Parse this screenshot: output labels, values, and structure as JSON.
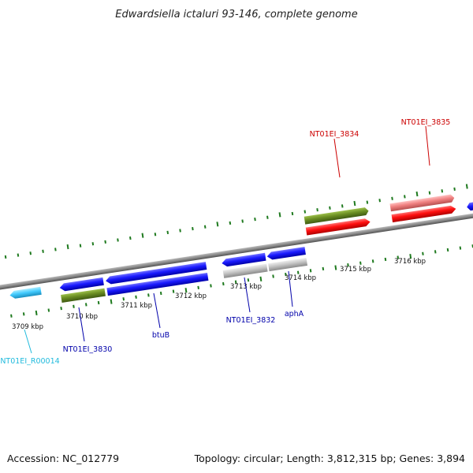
{
  "title": "Edwardsiella ictaluri 93-146, complete genome",
  "footer": {
    "accession": "Accession: NC_012779",
    "summary": "Topology: circular; Length: 3,812,315 bp; Genes: 3,894"
  },
  "scale_labels": [
    "3709 kbp",
    "3710 kbp",
    "3711 kbp",
    "3712 kbp",
    "3713 kbp",
    "3714 kbp",
    "3715 kbp",
    "3716 kbp"
  ],
  "gene_labels": {
    "nt01ei_3834": "NT01EI_3834",
    "nt01ei_3835": "NT01EI_3835",
    "nt01ei_r00014": "NT01EI_R00014",
    "nt01ei_3830": "NT01EI_3830",
    "btub": "btuB",
    "nt01ei_3832": "NT01EI_3832",
    "apha": "aphA"
  },
  "colors": {
    "cds_forward": "#ff0000",
    "cds_reverse": "#0000ee",
    "rna": "#44ccff",
    "cog_green": "#6b8e23",
    "cog_pink": "#f08080",
    "cog_gray": "#b8b8b8",
    "ticks": "#1f7a1f",
    "backbone": "#808080",
    "label_red": "#cc0000",
    "label_blue": "#0000aa",
    "label_cyan": "#22bbdd"
  }
}
